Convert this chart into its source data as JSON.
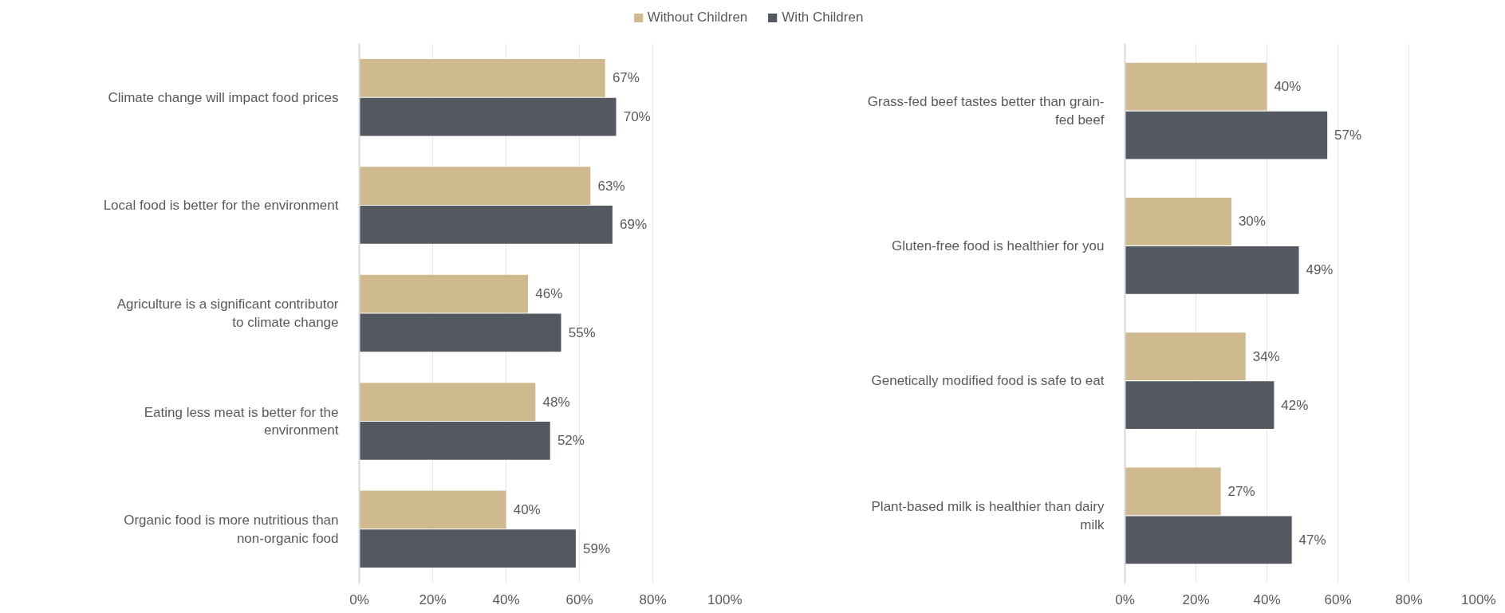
{
  "chart_data": [
    {
      "type": "bar",
      "orientation": "horizontal",
      "legend": "top",
      "grid": "x",
      "categories": [
        "Climate change will impact food prices",
        "Local food is better for the environment",
        "Agriculture is a significant contributor to climate change",
        "Eating less meat is better for the environment",
        "Organic food is more nutritious than non-organic food"
      ],
      "series": [
        {
          "name": "Without Children",
          "color": "#cfba8f",
          "values": [
            67,
            63,
            46,
            48,
            40
          ],
          "value_labels": [
            "67%",
            "63%",
            "46%",
            "48%",
            "40%"
          ]
        },
        {
          "name": "With Children",
          "color": "#545961",
          "values": [
            70,
            69,
            55,
            52,
            59
          ],
          "value_labels": [
            "70%",
            "69%",
            "55%",
            "52%",
            "59%"
          ]
        }
      ],
      "xlim": [
        0,
        100
      ],
      "xticks": [
        {
          "value": 0,
          "label": "0%"
        },
        {
          "value": 20,
          "label": "20%"
        },
        {
          "value": 40,
          "label": "40%"
        },
        {
          "value": 60,
          "label": "60%"
        },
        {
          "value": 80,
          "label": "80%"
        },
        {
          "value": 100,
          "label": "100%"
        }
      ]
    },
    {
      "type": "bar",
      "orientation": "horizontal",
      "grid": "x",
      "categories": [
        "Grass-fed beef tastes better than grain-fed beef",
        "Gluten-free food is healthier for you",
        "Genetically modified food is safe to eat",
        "Plant-based milk is healthier than dairy milk"
      ],
      "series": [
        {
          "color": "#cfba8f",
          "values": [
            40,
            30,
            34,
            27
          ],
          "value_labels": [
            "40%",
            "30%",
            "34%",
            "27%"
          ]
        },
        {
          "color": "#545961",
          "values": [
            57,
            49,
            42,
            47
          ],
          "value_labels": [
            "57%",
            "49%",
            "42%",
            "47%"
          ]
        }
      ],
      "xlim": [
        0,
        100
      ],
      "xticks": [
        {
          "value": 0,
          "label": "0%"
        },
        {
          "value": 20,
          "label": "20%"
        },
        {
          "value": 40,
          "label": "40%"
        },
        {
          "value": 60,
          "label": "60%"
        },
        {
          "value": 80,
          "label": "80%"
        },
        {
          "value": 100,
          "label": "100%"
        }
      ]
    }
  ]
}
